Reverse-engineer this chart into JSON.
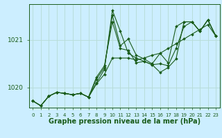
{
  "background_color": "#cceeff",
  "plot_bg_color": "#cceeff",
  "line_color": "#1a5c1a",
  "grid_color": "#b8ddd8",
  "xlabel": "Graphe pression niveau de la mer (hPa)",
  "xlabel_fontsize": 7,
  "ylabel_ticks": [
    1020,
    1021
  ],
  "xlim": [
    -0.5,
    23.5
  ],
  "ylim": [
    1019.58,
    1021.75
  ],
  "xticks": [
    0,
    1,
    2,
    3,
    4,
    5,
    6,
    7,
    8,
    9,
    10,
    11,
    12,
    13,
    14,
    15,
    16,
    17,
    18,
    19,
    20,
    21,
    22,
    23
  ],
  "series": [
    [
      1019.72,
      1019.62,
      1019.82,
      1019.9,
      1019.88,
      1019.85,
      1019.88,
      1019.8,
      1020.1,
      1020.38,
      1021.62,
      1021.18,
      1020.72,
      1020.62,
      1020.55,
      1020.48,
      1020.32,
      1020.42,
      1020.6,
      1021.38,
      1021.38,
      1021.18,
      1021.42,
      1021.08
    ],
    [
      1019.72,
      1019.62,
      1019.82,
      1019.9,
      1019.88,
      1019.85,
      1019.88,
      1019.8,
      1020.18,
      1020.42,
      1021.52,
      1020.88,
      1021.02,
      1020.68,
      1020.6,
      1020.5,
      1020.72,
      1020.52,
      1021.28,
      1021.38,
      1021.38,
      1021.18,
      1021.42,
      1021.08
    ],
    [
      1019.72,
      1019.62,
      1019.82,
      1019.9,
      1019.88,
      1019.85,
      1019.88,
      1019.8,
      1020.22,
      1020.46,
      1021.38,
      1020.82,
      1020.78,
      1020.52,
      1020.55,
      1020.48,
      1020.5,
      1020.46,
      1020.82,
      1021.28,
      1021.38,
      1021.18,
      1021.42,
      1021.08
    ],
    [
      1019.72,
      1019.62,
      1019.82,
      1019.9,
      1019.88,
      1019.85,
      1019.88,
      1019.8,
      1020.08,
      1020.28,
      1020.62,
      1020.62,
      1020.62,
      1020.58,
      1020.62,
      1020.68,
      1020.72,
      1020.82,
      1020.92,
      1021.02,
      1021.12,
      1021.22,
      1021.32,
      1021.08
    ]
  ]
}
